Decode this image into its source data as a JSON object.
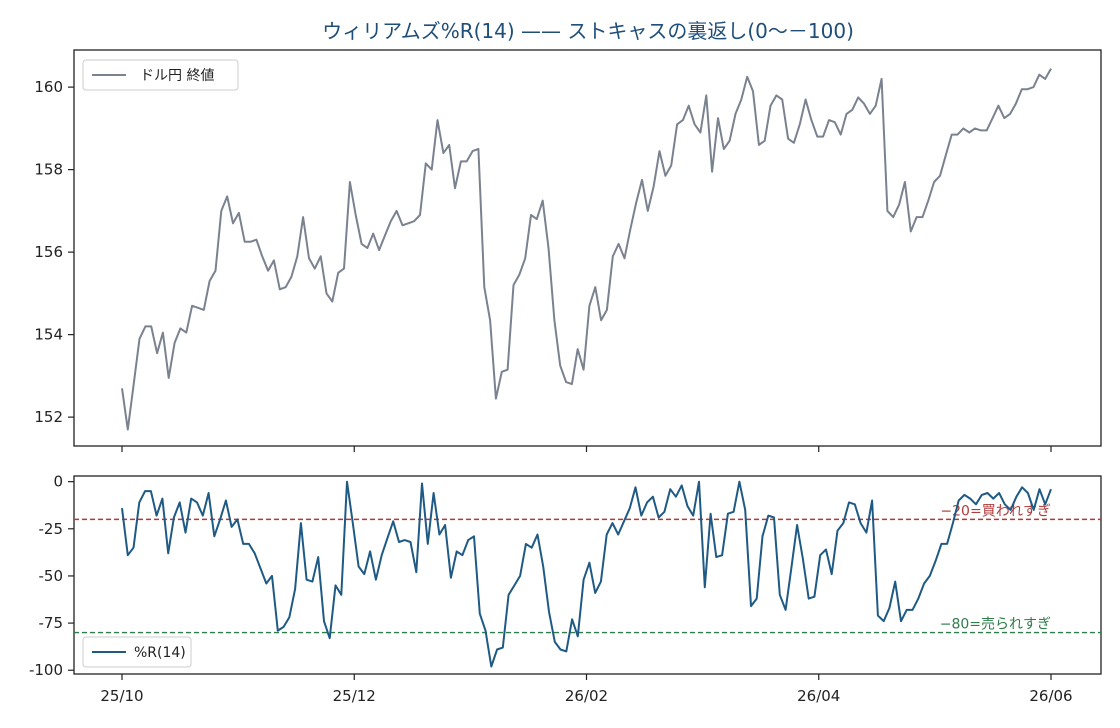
{
  "title": "ウィリアムズ%R(14) —— ストキャスの裏返し(0〜－100)",
  "x_tick_labels": [
    "25/10",
    "25/12",
    "26/02",
    "26/04",
    "26/06"
  ],
  "chart_data": [
    {
      "type": "line",
      "x_ticks": [
        "25/10",
        "25/12",
        "26/02",
        "26/04",
        "26/06"
      ],
      "x": {
        "start": "25/10",
        "end": "26/06"
      },
      "ylim": [
        151.3,
        160.9
      ],
      "y_ticks": [
        152,
        154,
        156,
        158,
        160
      ],
      "grid": false,
      "legend_placement": "top-left",
      "series": [
        {
          "name": "ドル円 終値",
          "color": "#7a8290",
          "values": [
            152.7,
            151.7,
            152.8,
            153.9,
            154.2,
            154.2,
            153.55,
            154.05,
            152.95,
            153.8,
            154.15,
            154.05,
            154.7,
            154.65,
            154.6,
            155.3,
            155.55,
            157.0,
            157.35,
            156.7,
            156.95,
            156.25,
            156.25,
            156.3,
            155.9,
            155.55,
            155.8,
            155.1,
            155.15,
            155.4,
            155.9,
            156.85,
            155.85,
            155.6,
            155.9,
            155.0,
            154.8,
            155.5,
            155.6,
            157.7,
            156.9,
            156.2,
            156.1,
            156.45,
            156.05,
            156.4,
            156.75,
            157.0,
            156.65,
            156.7,
            156.75,
            156.9,
            158.15,
            158.0,
            159.2,
            158.4,
            158.6,
            157.55,
            158.2,
            158.2,
            158.45,
            158.5,
            155.15,
            154.35,
            152.45,
            153.1,
            153.15,
            155.2,
            155.45,
            155.85,
            156.9,
            156.8,
            157.25,
            156.1,
            154.35,
            153.25,
            152.85,
            152.8,
            153.65,
            153.15,
            154.7,
            155.15,
            154.35,
            154.6,
            155.9,
            156.2,
            155.85,
            156.55,
            157.2,
            157.75,
            157.0,
            157.6,
            158.45,
            157.85,
            158.1,
            159.1,
            159.2,
            159.55,
            159.1,
            158.9,
            159.8,
            157.95,
            159.25,
            158.5,
            158.7,
            159.35,
            159.7,
            160.25,
            159.9,
            158.6,
            158.7,
            159.55,
            159.8,
            159.7,
            158.75,
            158.65,
            159.1,
            159.7,
            159.2,
            158.8,
            158.8,
            159.2,
            159.15,
            158.85,
            159.35,
            159.45,
            159.75,
            159.6,
            159.35,
            159.55,
            160.2,
            157.0,
            156.85,
            157.15,
            157.7,
            156.5,
            156.85,
            156.85,
            157.25,
            157.7,
            157.85,
            158.35,
            158.85,
            158.85,
            159.0,
            158.9,
            159.0,
            158.95,
            158.95,
            159.25,
            159.55,
            159.25,
            159.35,
            159.6,
            159.95,
            159.95,
            160.0,
            160.3,
            160.2,
            160.45
          ]
        }
      ]
    },
    {
      "type": "line",
      "x_ticks": [
        "25/10",
        "25/12",
        "26/02",
        "26/04",
        "26/06"
      ],
      "x": {
        "start": "25/10",
        "end": "26/06"
      },
      "ylim": [
        -102,
        3
      ],
      "y_ticks": [
        0,
        -25,
        -50,
        -75,
        -100
      ],
      "y_tick_labels": [
        "0",
        "-25",
        "-50",
        "-75",
        "-100"
      ],
      "grid": false,
      "legend_placement": "bottom-left",
      "series": [
        {
          "name": "%R(14)",
          "color": "#1f5a85",
          "values": [
            -14,
            -39,
            -35,
            -11,
            -5,
            -5,
            -18,
            -9,
            -38,
            -19,
            -11,
            -27,
            -9,
            -11,
            -18,
            -6,
            -29,
            -20,
            -10,
            -24,
            -20,
            -33,
            -33,
            -38,
            -46,
            -54,
            -50,
            -79,
            -77,
            -72,
            -57,
            -22,
            -52,
            -53,
            -40,
            -74,
            -83,
            -55,
            -60,
            0,
            -22,
            -45,
            -49,
            -37,
            -52,
            -39,
            -30,
            -21,
            -32,
            -31,
            -32,
            -48,
            -1,
            -33,
            -6,
            -28,
            -23,
            -51,
            -37,
            -39,
            -31,
            -29,
            -70,
            -79,
            -98,
            -89,
            -88,
            -60,
            -55,
            -50,
            -33,
            -35,
            -28,
            -45,
            -69,
            -85,
            -89,
            -90,
            -73,
            -82,
            -52,
            -43,
            -59,
            -53,
            -28,
            -22,
            -28,
            -21,
            -14,
            -3,
            -18,
            -11,
            -8,
            -19,
            -16,
            -4,
            -8,
            -2,
            -13,
            -18,
            0,
            -56,
            -17,
            -40,
            -39,
            -17,
            -16,
            0,
            -15,
            -66,
            -62,
            -29,
            -18,
            -19,
            -60,
            -68,
            -46,
            -23,
            -41,
            -62,
            -61,
            -39,
            -36,
            -49,
            -26,
            -22,
            -11,
            -12,
            -22,
            -27,
            -10,
            -71,
            -74,
            -67,
            -53,
            -74,
            -68,
            -68,
            -62,
            -54,
            -50,
            -42,
            -33,
            -33,
            -22,
            -10,
            -7,
            -9,
            -12,
            -7,
            -6,
            -9,
            -6,
            -12,
            -15,
            -8,
            -3,
            -6,
            -15,
            -4,
            -12,
            -4
          ]
        }
      ],
      "reference_lines": [
        {
          "y": -20,
          "label": "−20=買われすぎ",
          "color": "#b03a3a"
        },
        {
          "y": -80,
          "label": "−80=売られすぎ",
          "color": "#2e7d4a"
        }
      ]
    }
  ]
}
